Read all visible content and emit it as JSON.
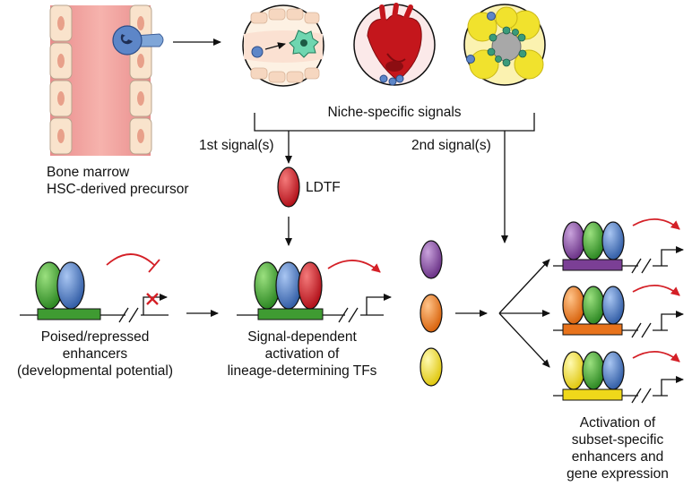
{
  "bone_marrow": {
    "line1": "Bone marrow",
    "line2": "HSC-derived precursor"
  },
  "niche": {
    "label": "Niche-specific signals",
    "first_signal": "1st signal(s)",
    "second_signal": "2nd signal(s)"
  },
  "ldtf": {
    "label": "LDTF"
  },
  "poised": {
    "line1": "Poised/repressed",
    "line2": "enhancers",
    "line3": "(developmental potential)"
  },
  "activation": {
    "line1": "Signal-dependent",
    "line2": "activation of",
    "line3": "lineage-determining TFs"
  },
  "subset": {
    "line1": "Activation of",
    "line2": "subset-specific",
    "line3": "enhancers and",
    "line4": "gene expression"
  },
  "colors": {
    "green_tf": "#4caf3d",
    "blue_tf": "#4f7bc4",
    "red_tf": "#d8202a",
    "purple_tf": "#8b4fa3",
    "orange_tf": "#f07f24",
    "yellow_tf": "#f4e32c",
    "enhancer_green": "#3f9b32",
    "enhancer_purple": "#7b3f95",
    "enhancer_orange": "#e8731c",
    "enhancer_yellow": "#efd81a",
    "arrow_red": "#d42027",
    "vessel_pink": "#f2a0a0"
  }
}
